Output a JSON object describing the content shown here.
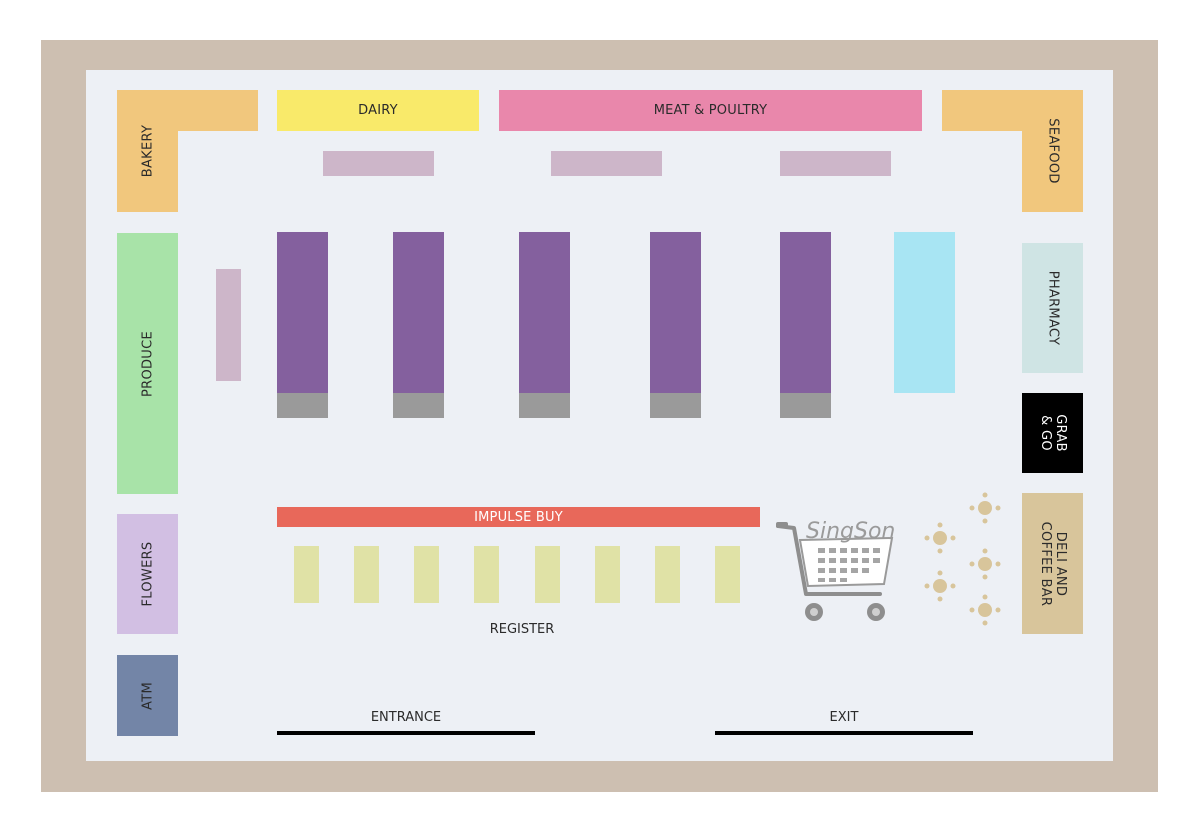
{
  "departments": {
    "dairy": "DAIRY",
    "meat_poultry": "MEAT & POULTRY",
    "bakery": "BAKERY",
    "seafood": "SEAFOOD",
    "produce": "PRODUCE",
    "pharmacy": "PHARMACY",
    "grab_go": "GRAB\n& GO",
    "deli_coffee": "DELI AND\nCOFFEE BAR",
    "flowers": "FLOWERS",
    "atm": "ATM",
    "impulse_buy": "IMPULSE BUY",
    "register": "REGISTER"
  },
  "doors": {
    "entrance": "ENTRANCE",
    "exit": "EXIT"
  },
  "logo": {
    "text": "SingSong"
  },
  "colors": {
    "frame": "#cdbfb1",
    "floor": "#edf0f5",
    "aisle": "#84609e",
    "impulse": "#e8685a"
  }
}
